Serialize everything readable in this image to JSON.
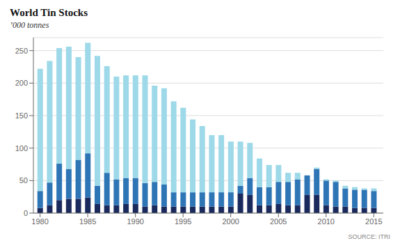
{
  "chart_data": {
    "type": "bar",
    "stacked": true,
    "title": "World Tin Stocks",
    "subtitle": "’000 tonnes",
    "annotations": [
      "SOURCE: ITRI"
    ],
    "x": [
      1980,
      1981,
      1982,
      1983,
      1984,
      1985,
      1986,
      1987,
      1988,
      1989,
      1990,
      1991,
      1992,
      1993,
      1994,
      1995,
      1996,
      1997,
      1998,
      1999,
      2000,
      2001,
      2002,
      2003,
      2004,
      2005,
      2006,
      2007,
      2008,
      2009,
      2010,
      2011,
      2012,
      2013,
      2014,
      2015
    ],
    "series": [
      {
        "color": "#1b2a5c",
        "values": [
          8,
          12,
          20,
          22,
          22,
          24,
          14,
          12,
          12,
          14,
          14,
          10,
          12,
          10,
          10,
          10,
          10,
          10,
          10,
          10,
          10,
          30,
          28,
          12,
          12,
          14,
          12,
          12,
          28,
          28,
          12,
          10,
          10,
          8,
          8,
          8
        ]
      },
      {
        "color": "#2e75b6",
        "values": [
          26,
          35,
          56,
          46,
          60,
          68,
          28,
          50,
          40,
          40,
          40,
          36,
          36,
          34,
          22,
          22,
          22,
          22,
          22,
          22,
          22,
          12,
          26,
          28,
          28,
          34,
          36,
          40,
          30,
          40,
          38,
          38,
          28,
          28,
          28,
          26
        ]
      },
      {
        "color": "#9dd9e8",
        "values": [
          188,
          187,
          178,
          188,
          158,
          170,
          200,
          164,
          158,
          158,
          158,
          166,
          148,
          148,
          140,
          130,
          112,
          102,
          88,
          88,
          78,
          68,
          54,
          44,
          34,
          26,
          14,
          10,
          0,
          2,
          2,
          2,
          4,
          4,
          2,
          4
        ]
      }
    ],
    "xlim": [
      1979.3,
      2016
    ],
    "xticks": [
      1980,
      1985,
      1990,
      1995,
      2000,
      2005,
      2010,
      2015
    ],
    "ylim": [
      0,
      270
    ],
    "yticks": [
      0,
      50,
      100,
      150,
      200,
      250
    ],
    "grid": true
  }
}
